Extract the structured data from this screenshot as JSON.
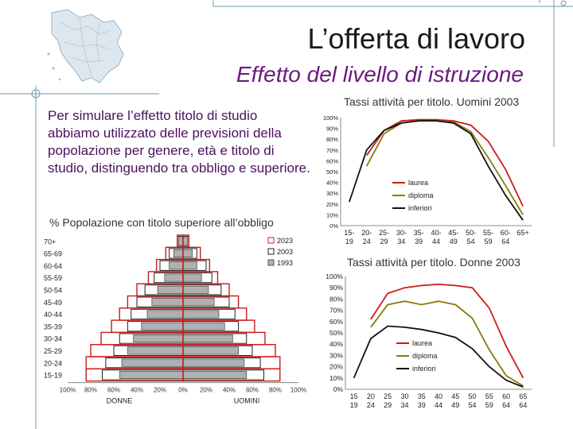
{
  "slide": {
    "title": "L’offerta di lavoro",
    "subtitle": "Effetto del livello di istruzione",
    "body": "Per simulare l’effetto titolo di studio abbiamo utilizzato delle previsioni della popolazione per genere, età e titolo di studio, distinguendo tra obbligo e superiore."
  },
  "colors": {
    "title_text": "#1a1a1a",
    "subtitle_text": "#6a1a80",
    "body_text": "#4a1060",
    "accent_line": "#6a9ab0",
    "laurea": "#cc1a1a",
    "diploma": "#8a7a10",
    "inferiori": "#111111"
  },
  "chart_data": [
    {
      "type": "bar",
      "title": "% Popolazione con titolo superiore all’obbligo",
      "categories": [
        "15-19",
        "20-24",
        "25-29",
        "30-34",
        "35-39",
        "40-44",
        "45-49",
        "50-54",
        "55-59",
        "60-64",
        "65-69",
        "70+"
      ],
      "series": [
        {
          "name": "2023",
          "values": [
            84,
            84,
            80,
            71,
            62,
            55,
            48,
            40,
            30,
            23,
            15,
            5
          ],
          "style": "red outline"
        },
        {
          "name": "2003",
          "values": [
            70,
            67,
            60,
            55,
            48,
            45,
            40,
            33,
            25,
            20,
            12,
            5
          ],
          "style": "white fill"
        },
        {
          "name": "1993",
          "values": [
            55,
            53,
            48,
            43,
            36,
            31,
            27,
            22,
            16,
            12,
            8,
            4
          ],
          "style": "grey fill"
        }
      ],
      "xticks": [
        "100%",
        "80%",
        "60%",
        "40%",
        "20%",
        "0%",
        "20%",
        "40%",
        "60%",
        "80%",
        "100%"
      ],
      "xlabel_left": "DONNE",
      "xlabel_right": "UOMINI",
      "xlim": [
        -100,
        100
      ]
    },
    {
      "type": "line",
      "title": "Tassi attività per titolo. Uomini 2003",
      "categories": [
        "15-\n19",
        "20-\n24",
        "25-\n29",
        "30-\n34",
        "35-\n39",
        "40-\n44",
        "45-\n49",
        "50-\n54",
        "55-\n59",
        "60-\n64",
        "65+"
      ],
      "yticks": [
        "0%",
        "10%",
        "20%",
        "30%",
        "40%",
        "50%",
        "60%",
        "70%",
        "80%",
        "90%",
        "100%"
      ],
      "ylim": [
        0,
        100
      ],
      "series": [
        {
          "name": "laurea",
          "values": [
            null,
            65,
            88,
            97,
            98,
            98,
            97,
            93,
            78,
            52,
            18
          ]
        },
        {
          "name": "diploma",
          "values": [
            null,
            55,
            85,
            95,
            97,
            97,
            96,
            87,
            63,
            37,
            10
          ]
        },
        {
          "name": "inferiori",
          "values": [
            22,
            70,
            88,
            95,
            97,
            97,
            95,
            85,
            55,
            28,
            5
          ]
        }
      ]
    },
    {
      "type": "line",
      "title": "Tassi attività per titolo. Donne 2003",
      "categories": [
        "15\n19",
        "20\n24",
        "25\n29",
        "30\n34",
        "35\n39",
        "40\n44",
        "45\n49",
        "50\n54",
        "55\n59",
        "60\n64",
        "65\n64"
      ],
      "yticks": [
        "0%",
        "10%",
        "20%",
        "30%",
        "40%",
        "50%",
        "60%",
        "70%",
        "80%",
        "90%",
        "100%"
      ],
      "ylim": [
        0,
        100
      ],
      "series": [
        {
          "name": "laurea",
          "values": [
            null,
            62,
            85,
            90,
            92,
            93,
            92,
            90,
            72,
            38,
            10
          ]
        },
        {
          "name": "diploma",
          "values": [
            null,
            55,
            75,
            78,
            75,
            78,
            75,
            63,
            35,
            12,
            3
          ]
        },
        {
          "name": "inferiori",
          "values": [
            10,
            45,
            56,
            55,
            53,
            50,
            46,
            36,
            20,
            8,
            2
          ]
        }
      ]
    }
  ]
}
